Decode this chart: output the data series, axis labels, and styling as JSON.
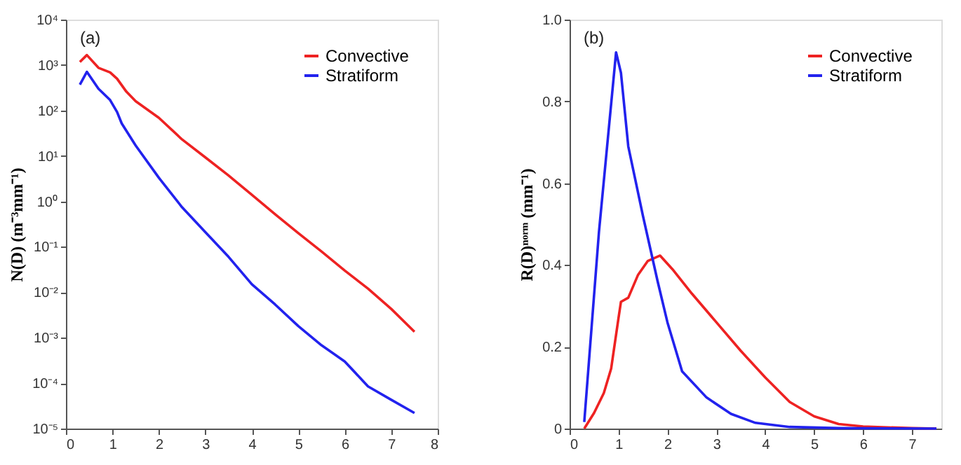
{
  "chart_data": [
    {
      "type": "line",
      "annotations": [
        "(a)"
      ],
      "ylabel": "N(D) (m⁻³mm⁻¹)",
      "log": true,
      "grid": false,
      "legend": "top right",
      "xlim": [
        0,
        8
      ],
      "xticks": [
        0,
        1,
        2,
        3,
        4,
        5,
        6,
        7,
        8
      ],
      "ylim": [
        1e-05,
        10000
      ],
      "yticks": [
        {
          "value": 1e-05,
          "label": "10⁻⁵"
        },
        {
          "value": 0.0001,
          "label": "10⁻⁴"
        },
        {
          "value": 0.001,
          "label": "10⁻³"
        },
        {
          "value": 0.01,
          "label": "10⁻²"
        },
        {
          "value": 0.1,
          "label": "10⁻¹"
        },
        {
          "value": 1,
          "label": "10⁰"
        },
        {
          "value": 10,
          "label": "10¹"
        },
        {
          "value": 100,
          "label": "10²"
        },
        {
          "value": 1000,
          "label": "10³"
        },
        {
          "value": 10000,
          "label": "10⁴"
        }
      ],
      "series": [
        {
          "name": "Convective",
          "color": "#ee2222",
          "x": [
            0.3,
            0.45,
            0.7,
            0.95,
            1.1,
            1.3,
            1.5,
            2,
            2.5,
            3,
            3.5,
            4,
            4.5,
            5,
            5.5,
            6,
            6.5,
            7,
            7.5
          ],
          "values": [
            1170,
            1660,
            870,
            690,
            500,
            260,
            160,
            69,
            23,
            9.3,
            3.7,
            1.4,
            0.52,
            0.2,
            0.079,
            0.03,
            0.012,
            0.0043,
            0.00135
          ]
        },
        {
          "name": "Stratiform",
          "color": "#2222ee",
          "x": [
            0.3,
            0.45,
            0.7,
            0.95,
            1.1,
            1.2,
            1.5,
            2,
            2.5,
            3,
            3.5,
            4,
            4.5,
            5,
            5.5,
            6,
            6.5,
            7,
            7.5
          ],
          "values": [
            370,
            710,
            300,
            170,
            93,
            52,
            17,
            3.3,
            0.74,
            0.21,
            0.06,
            0.015,
            0.0054,
            0.0018,
            0.00068,
            0.0003,
            8.5e-05,
            4.3e-05,
            2.2e-05
          ]
        }
      ]
    },
    {
      "type": "line",
      "annotations": [
        "(b)"
      ],
      "ylabel": "R(D)ⁿᵒʳᵐ (mm⁻¹)",
      "grid": false,
      "legend": "top right",
      "xlim": [
        0,
        7.6
      ],
      "xticks": [
        0,
        1,
        2,
        3,
        4,
        5,
        6,
        7
      ],
      "ylim": [
        0,
        1
      ],
      "yticks": [
        0,
        0.2,
        0.4,
        0.6,
        0.8,
        {
          "value": 1,
          "label": "1.0"
        }
      ],
      "series": [
        {
          "name": "Convective",
          "color": "#ee2222",
          "x": [
            0.3,
            0.5,
            0.7,
            0.85,
            1.0,
            1.05,
            1.2,
            1.4,
            1.6,
            1.85,
            2.1,
            2.5,
            3,
            3.5,
            4,
            4.5,
            5,
            5.5,
            6,
            7,
            7.5
          ],
          "values": [
            0,
            0.038,
            0.087,
            0.147,
            0.27,
            0.31,
            0.32,
            0.376,
            0.41,
            0.423,
            0.39,
            0.33,
            0.26,
            0.19,
            0.125,
            0.065,
            0.03,
            0.011,
            0.005,
            0.001,
            0
          ]
        },
        {
          "name": "Stratiform",
          "color": "#2222ee",
          "x": [
            0.3,
            0.6,
            0.95,
            1.05,
            1.2,
            1.5,
            1.8,
            2,
            2.3,
            2.8,
            3.3,
            3.8,
            4.5,
            5.5,
            7.5
          ],
          "values": [
            0.016,
            0.48,
            0.92,
            0.87,
            0.69,
            0.52,
            0.36,
            0.26,
            0.14,
            0.076,
            0.036,
            0.014,
            0.004,
            0.001,
            0
          ]
        }
      ]
    }
  ]
}
